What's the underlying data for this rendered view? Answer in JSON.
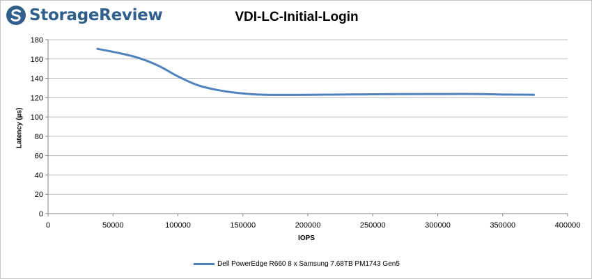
{
  "brand": {
    "name": "StorageReview",
    "logo_icon": "storagereview-logo-icon",
    "color": "#2f5f8a"
  },
  "chart_data": {
    "type": "line",
    "title": "VDI-LC-Initial-Login",
    "xlabel": "IOPS",
    "ylabel": "Latency (µs)",
    "xlim": [
      0,
      400000
    ],
    "ylim": [
      0,
      180
    ],
    "x_ticks": [
      "0",
      "50000",
      "100000",
      "150000",
      "200000",
      "250000",
      "300000",
      "350000",
      "400000"
    ],
    "y_ticks": [
      "0",
      "20",
      "40",
      "60",
      "80",
      "100",
      "120",
      "140",
      "160",
      "180"
    ],
    "grid": "horizontal",
    "legend_position": "bottom",
    "series": [
      {
        "name": "Dell PowerEdge R660 8 x Samsung 7.68TB PM1743 Gen5",
        "color": "#4f81bd",
        "x": [
          38000,
          55000,
          70000,
          85000,
          100000,
          115000,
          130000,
          145000,
          160000,
          175000,
          200000,
          250000,
          300000,
          330000,
          350000,
          374000
        ],
        "y": [
          170.5,
          166,
          161,
          153,
          142,
          133,
          128,
          125,
          123.3,
          122.8,
          123,
          123.5,
          123.8,
          123.8,
          123.2,
          123
        ]
      }
    ]
  }
}
